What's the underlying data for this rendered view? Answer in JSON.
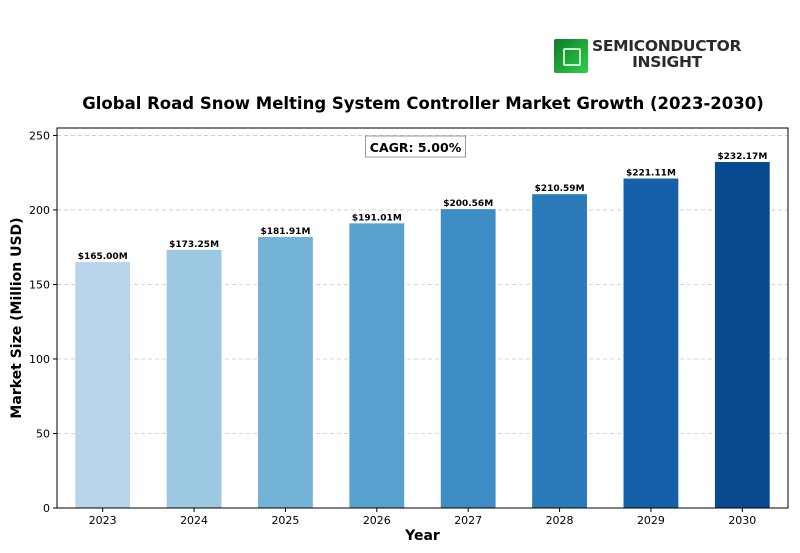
{
  "logo": {
    "line1": "SEMICONDUCTOR",
    "line2": "INSIGHT"
  },
  "chart_data": {
    "type": "bar",
    "title": "Global Road Snow Melting System Controller Market Growth (2023-2030)",
    "xlabel": "Year",
    "ylabel": "Market Size (Million USD)",
    "categories": [
      "2023",
      "2024",
      "2025",
      "2026",
      "2027",
      "2028",
      "2029",
      "2030"
    ],
    "values": [
      165.0,
      173.25,
      181.91,
      191.01,
      200.56,
      210.59,
      221.11,
      232.17
    ],
    "data_labels": [
      "$165.00M",
      "$173.25M",
      "$181.91M",
      "$191.01M",
      "$200.56M",
      "$210.59M",
      "$221.11M",
      "$232.17M"
    ],
    "ylim": [
      0,
      255
    ],
    "yticks": [
      0,
      50,
      100,
      150,
      200,
      250
    ],
    "grid": "horizontal dashed",
    "annotation": "CAGR: 5.00%",
    "colors": [
      "#b7d4ea",
      "#9cc8e1",
      "#74b3d8",
      "#58a1cf",
      "#3d8dc4",
      "#2a7aba",
      "#1560a8",
      "#084990"
    ]
  }
}
